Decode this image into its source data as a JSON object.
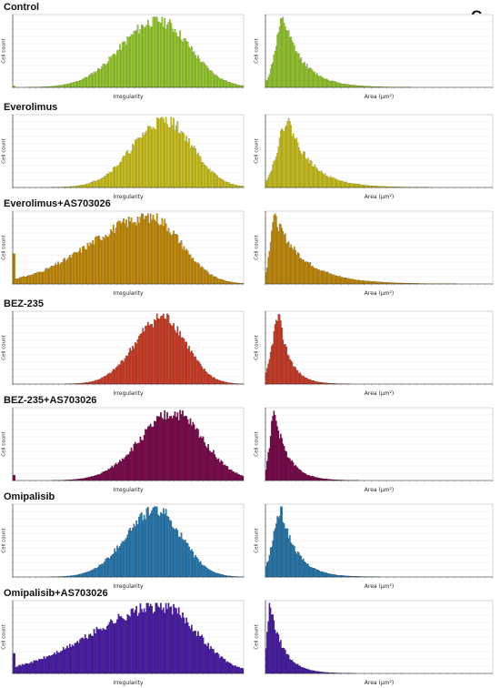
{
  "panel_letter": "C",
  "chart_data": [
    {
      "id": "control-irregularity",
      "row": 0,
      "side": "left",
      "type": "bar",
      "group": "Control",
      "color": "#9acd32",
      "xlabel": "Irregularity",
      "ylabel": "Cell count",
      "dist": {
        "kind": "gauss",
        "mu": 0.63,
        "sigma": 0.16,
        "edge": 0.02
      },
      "bins": 180,
      "seed": 11
    },
    {
      "id": "control-area",
      "row": 0,
      "side": "right",
      "type": "bar",
      "color": "#9acd32",
      "xlabel": "Area (μm²)",
      "ylabel": "Cell count",
      "dist": {
        "kind": "skew",
        "peak": 0.08,
        "rise": 0.035,
        "tau": 0.09
      },
      "bins": 200,
      "seed": 12
    },
    {
      "id": "everolimus-irregularity",
      "row": 1,
      "side": "left",
      "type": "bar",
      "group": "Everolimus",
      "color": "#cfc623",
      "xlabel": "Irregularity",
      "ylabel": "Cell count",
      "dist": {
        "kind": "gauss",
        "mu": 0.66,
        "sigma": 0.14,
        "edge": 0.0
      },
      "bins": 180,
      "seed": 21
    },
    {
      "id": "everolimus-area",
      "row": 1,
      "side": "right",
      "type": "bar",
      "color": "#cfc623",
      "xlabel": "Area (μm²)",
      "ylabel": "Cell count",
      "dist": {
        "kind": "skew",
        "peak": 0.1,
        "rise": 0.045,
        "tau": 0.1
      },
      "bins": 200,
      "seed": 22
    },
    {
      "id": "everolimus-as-irregularity",
      "row": 2,
      "side": "left",
      "type": "bar",
      "group": "Everolimus+AS703026",
      "color": "#c8900f",
      "xlabel": "Irregularity",
      "ylabel": "Cell count",
      "dist": {
        "kind": "broad",
        "mu": 0.6,
        "sigma": 0.26,
        "edge": 0.45
      },
      "bins": 180,
      "seed": 31
    },
    {
      "id": "everolimus-as-area",
      "row": 2,
      "side": "right",
      "type": "bar",
      "color": "#c8900f",
      "xlabel": "Area (μm²)",
      "ylabel": "Cell count",
      "dist": {
        "kind": "skew",
        "peak": 0.04,
        "rise": 0.02,
        "tau": 0.13
      },
      "bins": 200,
      "seed": 32
    },
    {
      "id": "bez-irregularity",
      "row": 3,
      "side": "left",
      "type": "bar",
      "group": "BEZ-235",
      "color": "#d0402a",
      "xlabel": "Irregularity",
      "ylabel": "Cell count",
      "dist": {
        "kind": "gauss",
        "mu": 0.65,
        "sigma": 0.12,
        "edge": 0.0
      },
      "bins": 180,
      "seed": 41
    },
    {
      "id": "bez-area",
      "row": 3,
      "side": "right",
      "type": "bar",
      "color": "#d0402a",
      "xlabel": "Area (μm²)",
      "ylabel": "Cell count",
      "dist": {
        "kind": "skew",
        "peak": 0.06,
        "rise": 0.03,
        "tau": 0.05
      },
      "bins": 200,
      "seed": 42
    },
    {
      "id": "bez-as-irregularity",
      "row": 4,
      "side": "left",
      "type": "bar",
      "group": "BEZ-235+AS703026",
      "color": "#7c0b4d",
      "xlabel": "Irregularity",
      "ylabel": "Cell count",
      "dist": {
        "kind": "gauss",
        "mu": 0.7,
        "sigma": 0.15,
        "edge": 0.08
      },
      "bins": 180,
      "seed": 51
    },
    {
      "id": "bez-as-area",
      "row": 4,
      "side": "right",
      "type": "bar",
      "color": "#7c0b4d",
      "xlabel": "Area (μm²)",
      "ylabel": "Cell count",
      "dist": {
        "kind": "skew",
        "peak": 0.04,
        "rise": 0.02,
        "tau": 0.06
      },
      "bins": 200,
      "seed": 52
    },
    {
      "id": "omipalisib-irregularity",
      "row": 5,
      "side": "left",
      "type": "bar",
      "group": "Omipalisib",
      "color": "#2b7cb3",
      "xlabel": "Irregularity",
      "ylabel": "Cell count",
      "dist": {
        "kind": "gauss",
        "mu": 0.62,
        "sigma": 0.13,
        "edge": 0.0
      },
      "bins": 180,
      "seed": 61
    },
    {
      "id": "omipalisib-area",
      "row": 5,
      "side": "right",
      "type": "bar",
      "color": "#2b7cb3",
      "xlabel": "Area (μm²)",
      "ylabel": "Cell count",
      "dist": {
        "kind": "skew",
        "peak": 0.07,
        "rise": 0.035,
        "tau": 0.07
      },
      "bins": 200,
      "seed": 62
    },
    {
      "id": "omipalisib-as-irregularity",
      "row": 6,
      "side": "left",
      "type": "bar",
      "group": "Omipalisib+AS703026",
      "color": "#4b1fa8",
      "xlabel": "Irregularity",
      "ylabel": "Cell count",
      "dist": {
        "kind": "broad",
        "mu": 0.65,
        "sigma": 0.3,
        "edge": 0.3
      },
      "bins": 180,
      "seed": 71
    },
    {
      "id": "omipalisib-as-area",
      "row": 6,
      "side": "right",
      "type": "bar",
      "color": "#4b1fa8",
      "xlabel": "Area (μm²)",
      "ylabel": "Cell count",
      "dist": {
        "kind": "skew",
        "peak": 0.02,
        "rise": 0.012,
        "tau": 0.06
      },
      "bins": 200,
      "seed": 72
    }
  ]
}
